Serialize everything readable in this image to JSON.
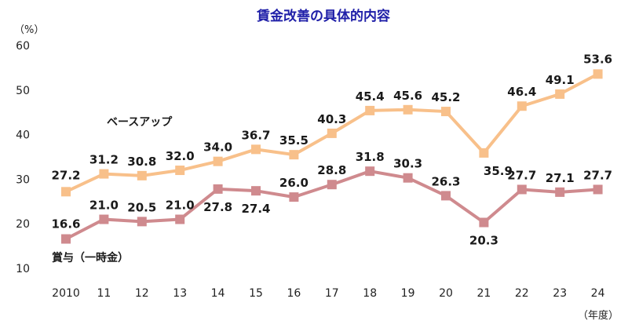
{
  "chart_data": {
    "type": "line",
    "title": "賃金改善の具体的内容",
    "yunit": "（%）",
    "xunit": "（年度）",
    "categories": [
      "2010",
      "11",
      "12",
      "13",
      "14",
      "15",
      "16",
      "17",
      "18",
      "19",
      "20",
      "21",
      "22",
      "23",
      "24"
    ],
    "ylim": [
      10,
      60
    ],
    "yticks": [
      10,
      20,
      30,
      40,
      50,
      60
    ],
    "grid": false,
    "legend": "none",
    "series": [
      {
        "name": "ベースアップ",
        "color": "#f8c08a",
        "values": [
          27.2,
          31.2,
          30.8,
          32.0,
          34.0,
          36.7,
          35.5,
          40.3,
          45.4,
          45.6,
          45.2,
          35.9,
          46.4,
          49.1,
          53.6
        ],
        "labels": [
          "27.2",
          "31.2",
          "30.8",
          "32.0",
          "34.0",
          "36.7",
          "35.5",
          "40.3",
          "45.4",
          "45.6",
          "45.2",
          "35.9",
          "46.4",
          "49.1",
          "53.6"
        ]
      },
      {
        "name": "賞与（一時金）",
        "color": "#cf8a8e",
        "values": [
          16.6,
          21.0,
          20.5,
          21.0,
          27.8,
          27.4,
          26.0,
          28.8,
          31.8,
          30.3,
          26.3,
          20.3,
          27.7,
          27.1,
          27.7
        ],
        "labels": [
          "16.6",
          "21.0",
          "20.5",
          "21.0",
          "27.8",
          "27.4",
          "26.0",
          "28.8",
          "31.8",
          "30.3",
          "26.3",
          "20.3",
          "27.7",
          "27.1",
          "27.7"
        ]
      }
    ]
  }
}
